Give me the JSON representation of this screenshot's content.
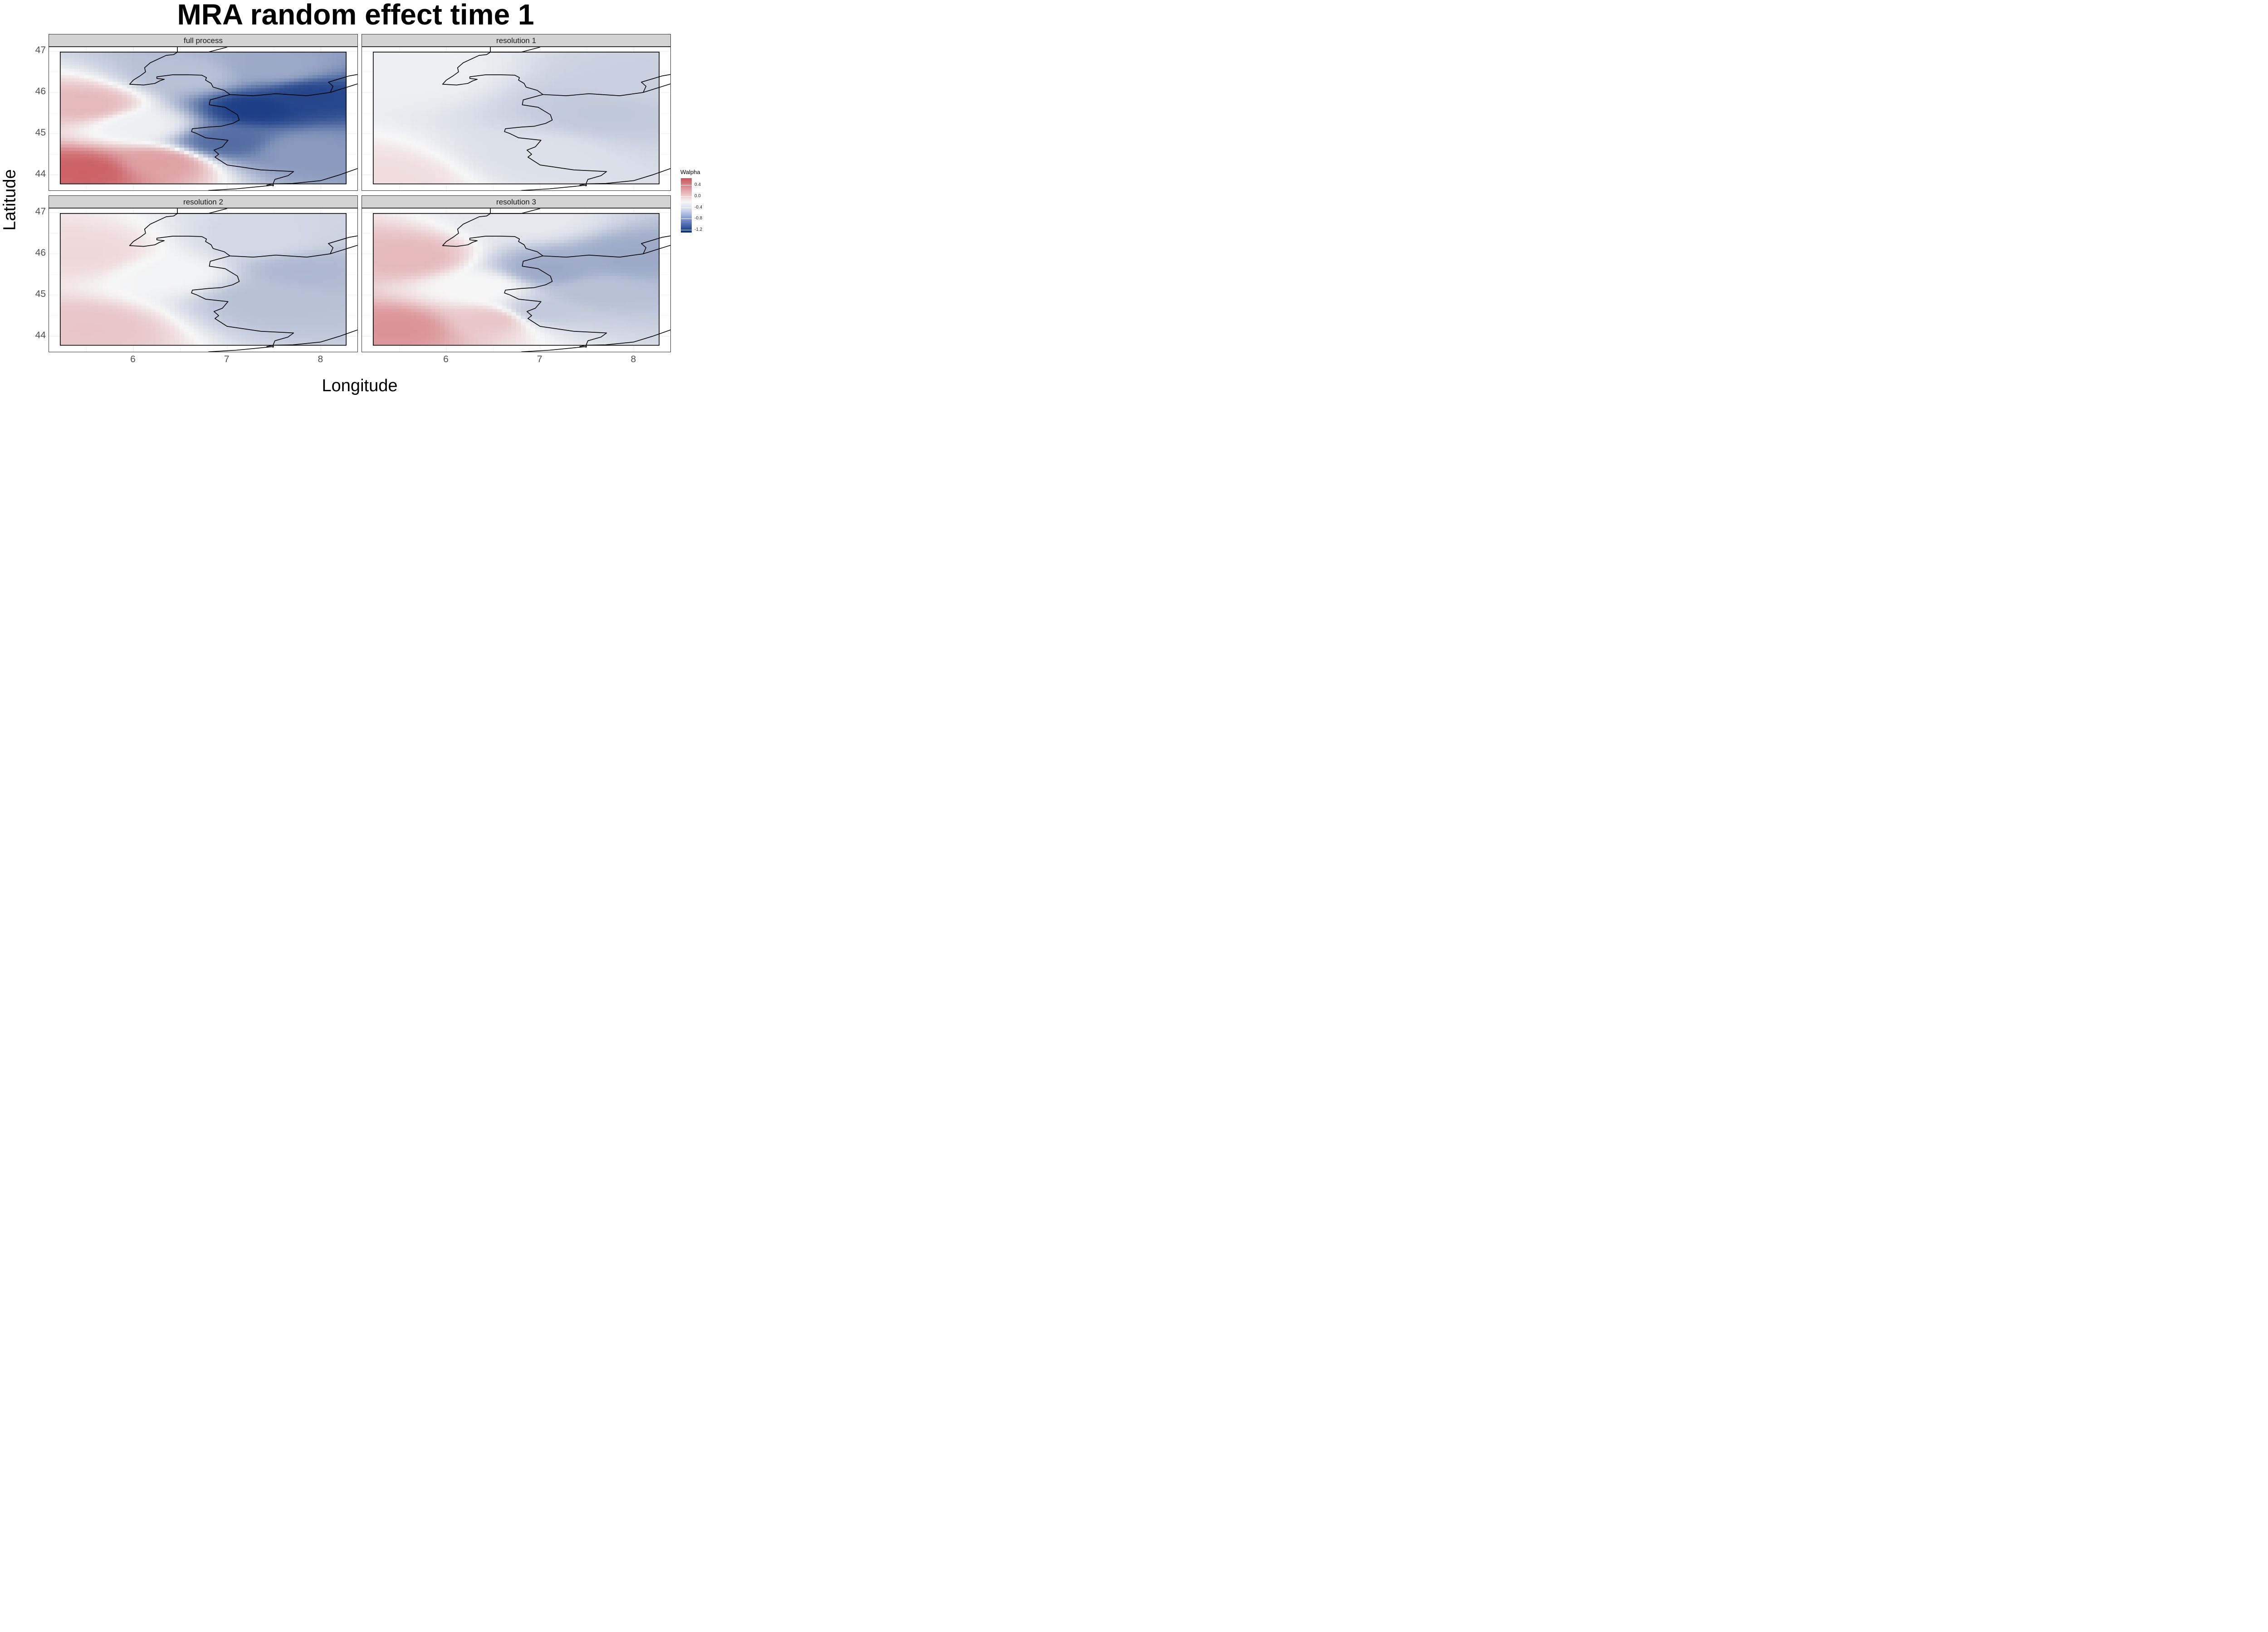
{
  "chart_data": {
    "type": "heatmap",
    "title": "MRA random effect time 1",
    "xlabel": "Longitude",
    "ylabel": "Latitude",
    "xlim": [
      5.1,
      8.4
    ],
    "ylim": [
      43.6,
      47.1
    ],
    "x_ticks": [
      "6",
      "7",
      "8"
    ],
    "y_ticks": [
      "44",
      "45",
      "46",
      "47"
    ],
    "grid": true,
    "legend": {
      "title": "Walpha",
      "position": "right",
      "ticks": [
        "0.4",
        "0.0",
        "-0.4",
        "-0.8",
        "-1.2"
      ],
      "range": [
        -1.3,
        0.65
      ],
      "colors": {
        "high": "#c8565b",
        "mid": "#f7f7f7",
        "low": "#0a2f7d"
      }
    },
    "domain_box": {
      "lon": [
        5.22,
        8.27
      ],
      "lat": [
        43.78,
        46.98
      ]
    },
    "panels": [
      {
        "label": "full process",
        "field": [
          {
            "lon": 5.5,
            "lat": 44.1,
            "value": 0.6
          },
          {
            "lon": 5.5,
            "lat": 45.7,
            "value": 0.25
          },
          {
            "lon": 6.3,
            "lat": 44.3,
            "value": 0.35
          },
          {
            "lon": 6.1,
            "lat": 45.2,
            "value": -0.05
          },
          {
            "lon": 6.6,
            "lat": 46.4,
            "value": -0.35
          },
          {
            "lon": 7.3,
            "lat": 45.6,
            "value": -1.2
          },
          {
            "lon": 7.9,
            "lat": 45.9,
            "value": -1.15
          },
          {
            "lon": 7.0,
            "lat": 44.8,
            "value": -0.9
          },
          {
            "lon": 7.8,
            "lat": 44.6,
            "value": -0.6
          },
          {
            "lon": 7.5,
            "lat": 46.6,
            "value": -0.5
          }
        ]
      },
      {
        "label": "resolution 1",
        "field": [
          {
            "lon": 5.3,
            "lat": 43.9,
            "value": 0.1
          },
          {
            "lon": 5.6,
            "lat": 46.5,
            "value": -0.05
          },
          {
            "lon": 7.7,
            "lat": 45.5,
            "value": -0.3
          },
          {
            "lon": 8.1,
            "lat": 46.2,
            "value": -0.25
          },
          {
            "lon": 7.0,
            "lat": 44.5,
            "value": -0.15
          }
        ]
      },
      {
        "label": "resolution 2",
        "field": [
          {
            "lon": 5.5,
            "lat": 44.2,
            "value": 0.2
          },
          {
            "lon": 5.5,
            "lat": 46.0,
            "value": 0.12
          },
          {
            "lon": 6.4,
            "lat": 45.5,
            "value": -0.02
          },
          {
            "lon": 7.4,
            "lat": 44.9,
            "value": -0.35
          },
          {
            "lon": 7.8,
            "lat": 45.6,
            "value": -0.4
          },
          {
            "lon": 7.4,
            "lat": 46.3,
            "value": -0.2
          }
        ]
      },
      {
        "label": "resolution 3",
        "field": [
          {
            "lon": 5.5,
            "lat": 44.2,
            "value": 0.4
          },
          {
            "lon": 5.6,
            "lat": 45.9,
            "value": 0.25
          },
          {
            "lon": 6.5,
            "lat": 44.4,
            "value": 0.2
          },
          {
            "lon": 6.4,
            "lat": 45.2,
            "value": 0.0
          },
          {
            "lon": 7.1,
            "lat": 45.6,
            "value": -0.5
          },
          {
            "lon": 8.0,
            "lat": 45.9,
            "value": -0.5
          },
          {
            "lon": 7.6,
            "lat": 45.1,
            "value": -0.35
          },
          {
            "lon": 7.0,
            "lat": 44.6,
            "value": -0.3
          },
          {
            "lon": 6.9,
            "lat": 46.8,
            "value": -0.1
          }
        ]
      }
    ],
    "border_lines": [
      [
        [
          6.47,
          47.1
        ],
        [
          6.47,
          46.98
        ],
        [
          6.8,
          46.98
        ],
        [
          7.0,
          47.1
        ]
      ],
      [
        [
          6.47,
          46.98
        ],
        [
          6.43,
          46.92
        ],
        [
          6.35,
          46.9
        ],
        [
          6.18,
          46.72
        ],
        [
          6.12,
          46.6
        ],
        [
          6.13,
          46.5
        ],
        [
          6.07,
          46.4
        ],
        [
          6.0,
          46.3
        ],
        [
          5.96,
          46.2
        ],
        [
          6.11,
          46.18
        ],
        [
          6.23,
          46.22
        ],
        [
          6.28,
          46.28
        ],
        [
          6.33,
          46.32
        ],
        [
          6.25,
          46.34
        ],
        [
          6.25,
          46.38
        ],
        [
          6.42,
          46.43
        ],
        [
          6.58,
          46.43
        ],
        [
          6.73,
          46.42
        ],
        [
          6.78,
          46.36
        ],
        [
          6.77,
          46.3
        ],
        [
          6.83,
          46.22
        ],
        [
          6.85,
          46.13
        ],
        [
          6.97,
          46.05
        ],
        [
          7.03,
          45.95
        ],
        [
          6.82,
          45.82
        ],
        [
          6.81,
          45.7
        ],
        [
          6.98,
          45.64
        ],
        [
          7.11,
          45.46
        ],
        [
          7.13,
          45.33
        ],
        [
          7.06,
          45.25
        ],
        [
          6.94,
          45.18
        ],
        [
          6.8,
          45.16
        ],
        [
          6.63,
          45.12
        ],
        [
          6.62,
          45.05
        ],
        [
          6.68,
          45.0
        ],
        [
          6.77,
          44.9
        ],
        [
          7.01,
          44.84
        ],
        [
          6.95,
          44.68
        ],
        [
          6.86,
          44.6
        ],
        [
          6.91,
          44.5
        ],
        [
          6.87,
          44.43
        ],
        [
          7.0,
          44.24
        ],
        [
          7.36,
          44.12
        ],
        [
          7.71,
          44.08
        ],
        [
          7.65,
          43.98
        ],
        [
          7.51,
          43.89
        ],
        [
          7.49,
          43.78
        ],
        [
          7.49,
          43.72
        ]
      ],
      [
        [
          7.03,
          45.95
        ],
        [
          7.28,
          45.92
        ],
        [
          7.52,
          45.97
        ],
        [
          7.85,
          45.92
        ],
        [
          8.1,
          46.0
        ],
        [
          8.45,
          46.25
        ]
      ],
      [
        [
          8.1,
          46.0
        ],
        [
          8.13,
          46.15
        ],
        [
          8.08,
          46.25
        ],
        [
          8.3,
          46.4
        ],
        [
          8.45,
          46.46
        ]
      ],
      [
        [
          7.49,
          43.78
        ],
        [
          7.7,
          43.79
        ],
        [
          8.0,
          43.86
        ],
        [
          8.2,
          44.0
        ],
        [
          8.45,
          44.2
        ]
      ],
      [
        [
          7.42,
          43.75
        ],
        [
          7.5,
          43.78
        ]
      ],
      [
        [
          6.8,
          43.62
        ],
        [
          7.1,
          43.66
        ],
        [
          7.5,
          43.75
        ]
      ]
    ]
  }
}
